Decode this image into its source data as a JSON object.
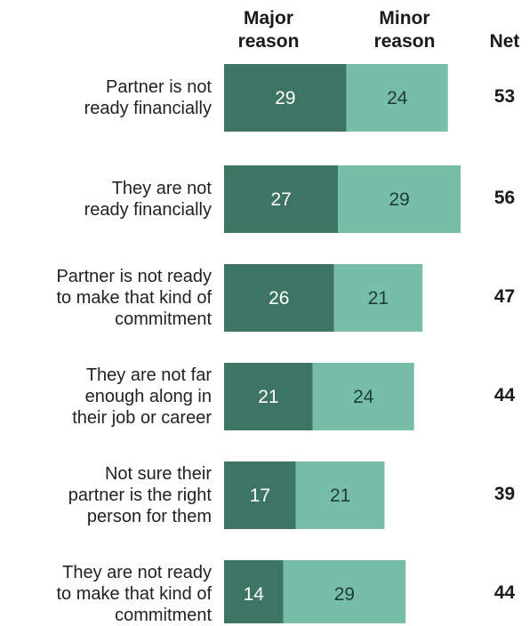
{
  "colors": {
    "major": "#3d7463",
    "minor": "#76bea7"
  },
  "chart_data": {
    "type": "bar",
    "orientation": "horizontal",
    "stacked": true,
    "headers": {
      "major": "Major\nreason",
      "minor": "Minor\nreason",
      "net": "Net"
    },
    "categories": [
      "Partner is not\nready financially",
      "They are not\nready financially",
      "Partner is not ready\nto make that kind of\ncommitment",
      "They are not far\nenough along in\ntheir job or career",
      "Not sure their\npartner is the right\nperson for them",
      "They are not ready\nto make that kind of\ncommitment"
    ],
    "series": [
      {
        "name": "Major reason",
        "values": [
          29,
          27,
          26,
          21,
          17,
          14
        ]
      },
      {
        "name": "Minor reason",
        "values": [
          24,
          29,
          21,
          24,
          21,
          29
        ]
      }
    ],
    "net": [
      53,
      56,
      47,
      44,
      39,
      44
    ]
  }
}
